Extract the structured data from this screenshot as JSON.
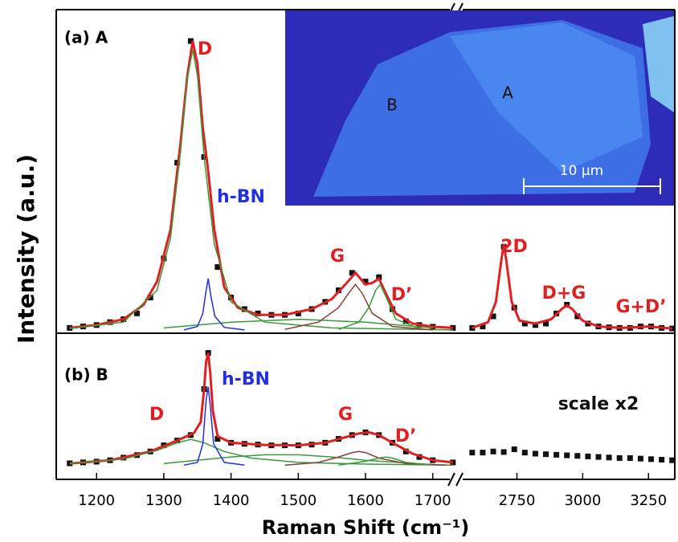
{
  "chart_data": [
    {
      "type": "line",
      "panel_label": "(a) A",
      "ylabel": "Intensity (a.u.)",
      "xlim": [
        1140,
        3350
      ],
      "axis_break": [
        1735,
        2550
      ],
      "ylim": [
        0,
        110
      ],
      "inset": {
        "labels": [
          "A",
          "B"
        ],
        "scale_bar": "10 μm"
      },
      "annotations": [
        {
          "text": "D",
          "color": "#e02020"
        },
        {
          "text": "h-BN",
          "color": "#2030e0"
        },
        {
          "text": "G",
          "color": "#e02020"
        },
        {
          "text": "D’",
          "color": "#e02020"
        },
        {
          "text": "2D",
          "color": "#e02020"
        },
        {
          "text": "D+G",
          "color": "#e02020"
        },
        {
          "text": "G+D’",
          "color": "#e02020"
        }
      ],
      "series": [
        {
          "color": "#111111",
          "marker": "square",
          "x": [
            1160,
            1180,
            1200,
            1220,
            1240,
            1260,
            1280,
            1300,
            1320,
            1340,
            1360,
            1380,
            1400,
            1420,
            1440,
            1460,
            1480,
            1500,
            1520,
            1540,
            1560,
            1580,
            1600,
            1620,
            1640,
            1660,
            1680,
            1700,
            1730,
            2580,
            2620,
            2660,
            2700,
            2740,
            2780,
            2820,
            2860,
            2900,
            2940,
            2980,
            3020,
            3060,
            3100,
            3140,
            3180,
            3220,
            3260,
            3300,
            3340
          ],
          "values": [
            1,
            1.5,
            2,
            3,
            4,
            6,
            11.5,
            25,
            58,
            100,
            60,
            22,
            11.5,
            7.5,
            6,
            5.5,
            5.5,
            6,
            7.5,
            10,
            14,
            20,
            17,
            18.5,
            7.5,
            3.3,
            2,
            1.4,
            1,
            1,
            1.5,
            5,
            29,
            8,
            2.5,
            2,
            2.5,
            6,
            9,
            5,
            2.5,
            1.5,
            1.2,
            1,
            1,
            1.5,
            1.5,
            1,
            0.8
          ]
        },
        {
          "color": "#e02020",
          "x": [
            1160,
            1200,
            1240,
            1270,
            1290,
            1310,
            1325,
            1335,
            1343,
            1350,
            1358,
            1366,
            1375,
            1390,
            1410,
            1440,
            1480,
            1520,
            1550,
            1570,
            1585,
            1600,
            1610,
            1620,
            1630,
            1645,
            1670,
            1700,
            1730
          ],
          "values": [
            1,
            2,
            4,
            9,
            17,
            35,
            65,
            88,
            100,
            92,
            70,
            55,
            35,
            15,
            8,
            5.5,
            5.5,
            7.5,
            11,
            16,
            20,
            16,
            16.5,
            18,
            13,
            6,
            2.5,
            1.4,
            1
          ]
        },
        {
          "color": "#e02020",
          "x": [
            2580,
            2640,
            2670,
            2690,
            2700,
            2710,
            2730,
            2760,
            2820,
            2880,
            2920,
            2940,
            2960,
            3000,
            3060,
            3150,
            3250,
            3340
          ],
          "values": [
            1,
            3,
            10,
            24,
            30,
            24,
            10,
            3.5,
            2.5,
            4,
            7.5,
            8.8,
            7.5,
            3.5,
            1.5,
            1,
            1.5,
            0.8
          ]
        },
        {
          "color": "#3a9a3a",
          "x": [
            1300,
            1400,
            1500,
            1600,
            1700
          ],
          "values": [
            1,
            3,
            4,
            3,
            1
          ]
        },
        {
          "color": "#3a9a3a",
          "x": [
            1160,
            1240,
            1290,
            1310,
            1325,
            1335,
            1343,
            1350,
            1360,
            1375,
            1400,
            1450,
            1550,
            1730
          ],
          "values": [
            0.8,
            3,
            14,
            32,
            62,
            87,
            97,
            88,
            60,
            30,
            10,
            3,
            1,
            0.3
          ]
        },
        {
          "color": "#2030e0",
          "x": [
            1330,
            1350,
            1358,
            1363,
            1366,
            1370,
            1376,
            1390,
            1420
          ],
          "values": [
            0.3,
            1.5,
            6,
            14,
            18,
            12,
            5,
            1.2,
            0.3
          ]
        },
        {
          "color": "#8b3a3a",
          "x": [
            1480,
            1530,
            1560,
            1575,
            1585,
            1595,
            1610,
            1640,
            1700
          ],
          "values": [
            0.5,
            3,
            8,
            13,
            16,
            13,
            6,
            1.5,
            0.3
          ]
        },
        {
          "color": "#3a9a3a",
          "x": [
            1560,
            1590,
            1605,
            1615,
            1622,
            1630,
            1645,
            1680
          ],
          "values": [
            0.5,
            3,
            8,
            14,
            16,
            12,
            4,
            0.8
          ]
        }
      ]
    },
    {
      "type": "line",
      "panel_label": "(b) B",
      "xlabel": "Raman Shift (cm⁻¹)",
      "xlim": [
        1140,
        3350
      ],
      "axis_break": [
        1735,
        2550
      ],
      "ylim": [
        0,
        110
      ],
      "xticks": [
        1200,
        1300,
        1400,
        1500,
        1600,
        1700,
        2750,
        3000,
        3250
      ],
      "annotations": [
        {
          "text": "h-BN",
          "color": "#2030e0"
        },
        {
          "text": "D",
          "color": "#e02020"
        },
        {
          "text": "G",
          "color": "#e02020"
        },
        {
          "text": "D’",
          "color": "#e02020"
        },
        {
          "text": "scale x2",
          "color": "#111111"
        }
      ],
      "series": [
        {
          "color": "#111111",
          "marker": "square",
          "x": [
            1160,
            1180,
            1200,
            1220,
            1240,
            1260,
            1280,
            1300,
            1320,
            1340,
            1360,
            1366,
            1380,
            1400,
            1420,
            1440,
            1460,
            1480,
            1500,
            1520,
            1540,
            1560,
            1580,
            1600,
            1620,
            1640,
            1660,
            1680,
            1700,
            1730,
            2580,
            2620,
            2660,
            2700,
            2740,
            2780,
            2820,
            2860,
            2900,
            2940,
            2980,
            3020,
            3060,
            3100,
            3140,
            3180,
            3220,
            3260,
            3300,
            3340
          ],
          "values": [
            2.2,
            3,
            3.7,
            5,
            7.4,
            9.7,
            13,
            18.6,
            23,
            28,
            70,
            103,
            24.5,
            21,
            20,
            19.3,
            18.6,
            18.6,
            18.6,
            19.3,
            21,
            24.5,
            28,
            30.5,
            28,
            21,
            13,
            8,
            5,
            3,
            12,
            12,
            13,
            12.5,
            15,
            12,
            11,
            10.5,
            10,
            9.5,
            9,
            8.5,
            8,
            7.5,
            7,
            7,
            6.5,
            6,
            5.5,
            5
          ]
        },
        {
          "color": "#e02020",
          "x": [
            1160,
            1220,
            1280,
            1320,
            1345,
            1355,
            1360,
            1363,
            1366,
            1369,
            1373,
            1380,
            1400,
            1450,
            1500,
            1540,
            1570,
            1590,
            1605,
            1620,
            1640,
            1670,
            1700,
            1730
          ],
          "values": [
            2,
            5,
            13,
            23,
            30,
            40,
            70,
            95,
            103,
            85,
            50,
            27,
            21,
            19,
            18.6,
            21,
            26,
            29.5,
            30.5,
            28,
            21,
            11,
            5,
            3
          ]
        },
        {
          "color": "#3a9a3a",
          "x": [
            1300,
            1400,
            1450,
            1500,
            1550,
            1600,
            1700
          ],
          "values": [
            2,
            8,
            10,
            10,
            8,
            5,
            1
          ]
        },
        {
          "color": "#3a9a3a",
          "x": [
            1160,
            1240,
            1290,
            1320,
            1340,
            1360,
            1390,
            1430,
            1500,
            1600,
            1730
          ],
          "values": [
            2,
            6,
            14,
            21,
            24,
            21,
            13,
            7,
            3,
            1.5,
            0.6
          ]
        },
        {
          "color": "#2030e0",
          "x": [
            1330,
            1350,
            1358,
            1363,
            1366,
            1369,
            1374,
            1390,
            1420
          ],
          "values": [
            0.5,
            3,
            20,
            60,
            72,
            55,
            20,
            3,
            0.5
          ]
        },
        {
          "color": "#8b3a3a",
          "x": [
            1480,
            1530,
            1560,
            1580,
            1590,
            1600,
            1620,
            1660,
            1720
          ],
          "values": [
            0.5,
            3,
            8,
            12,
            13,
            12,
            7,
            2,
            0.5
          ]
        },
        {
          "color": "#3a9a3a",
          "x": [
            1560,
            1600,
            1620,
            1630,
            1640,
            1660,
            1700
          ],
          "values": [
            0.5,
            4,
            7,
            8,
            7,
            3,
            0.5
          ]
        }
      ]
    }
  ]
}
